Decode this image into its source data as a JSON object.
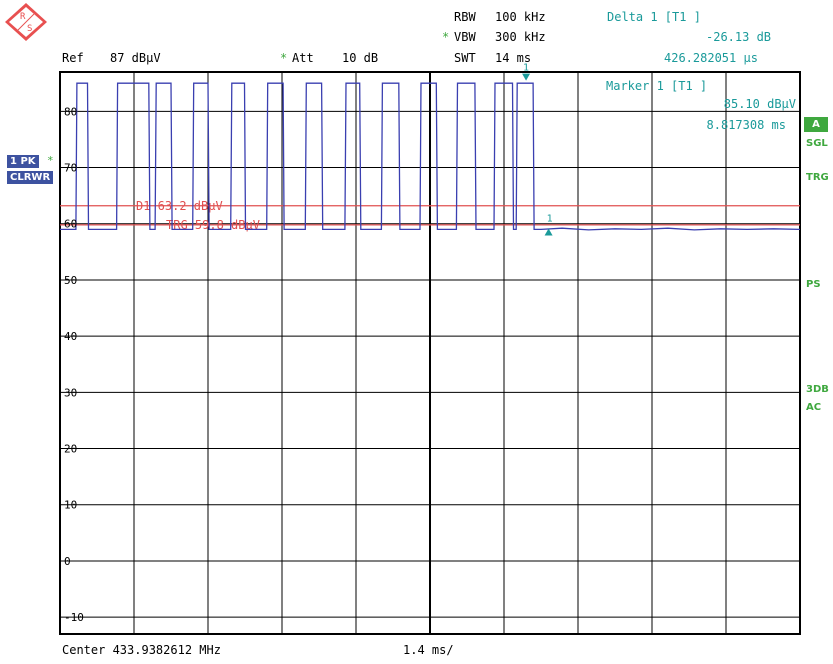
{
  "header": {
    "rbw_label": "RBW",
    "rbw_value": "100 kHz",
    "vbw_star": "*",
    "vbw_label": "VBW",
    "vbw_value": "300 kHz",
    "swt_label": "SWT",
    "swt_value": "14 ms",
    "ref_label": "Ref",
    "ref_value": "87 dBµV",
    "att_star": "*",
    "att_label": "Att",
    "att_value": "10 dB"
  },
  "delta_marker": {
    "title": "Delta 1 [T1 ]",
    "level": "-26.13 dB",
    "time": "426.282051 µs"
  },
  "marker": {
    "title": "Marker 1 [T1 ]",
    "level": "85.10 dBµV",
    "time": "8.817308 ms"
  },
  "left_badges": {
    "trace_label": "1 PK",
    "trace_star": "*",
    "mode_label": "CLRWR"
  },
  "right_labels": {
    "a_badge": "A",
    "sgl": "SGL",
    "trg": "TRG",
    "ps": "PS",
    "db3": "3DB",
    "ac": "AC"
  },
  "footer": {
    "center": "Center 433.9382612 MHz",
    "span": "1.4 ms/"
  },
  "colors": {
    "trace": "#3a3fb0",
    "limit_line": "#e05050",
    "marker": "#1a9a9a",
    "grid": "#000000"
  },
  "chart_data": {
    "type": "line",
    "x_unit": "ms",
    "y_unit": "dBµV",
    "xlim": [
      0,
      14
    ],
    "ylim": [
      -13,
      87
    ],
    "y_ticks": [
      80,
      70,
      60,
      50,
      40,
      30,
      20,
      10,
      0,
      -10
    ],
    "y_tick_labels": [
      "80",
      "70",
      "60",
      "50",
      "40",
      "30",
      "20",
      "10",
      "0",
      "-10"
    ],
    "grid": true,
    "series": [
      {
        "points": [
          [
            0,
            59
          ],
          [
            0.3,
            59
          ],
          [
            0.32,
            85
          ],
          [
            0.52,
            85
          ],
          [
            0.54,
            59
          ],
          [
            1.07,
            59
          ],
          [
            1.09,
            85
          ],
          [
            1.68,
            85
          ],
          [
            1.7,
            59
          ],
          [
            1.8,
            59
          ],
          [
            1.82,
            85
          ],
          [
            2.1,
            85
          ],
          [
            2.12,
            59
          ],
          [
            2.51,
            59
          ],
          [
            2.53,
            85
          ],
          [
            2.8,
            85
          ],
          [
            2.82,
            59
          ],
          [
            3.23,
            59
          ],
          [
            3.25,
            85
          ],
          [
            3.49,
            85
          ],
          [
            3.51,
            59
          ],
          [
            3.91,
            59
          ],
          [
            3.93,
            85
          ],
          [
            4.22,
            85
          ],
          [
            4.24,
            59
          ],
          [
            4.64,
            59
          ],
          [
            4.66,
            85
          ],
          [
            4.95,
            85
          ],
          [
            4.97,
            59
          ],
          [
            5.39,
            59
          ],
          [
            5.41,
            85
          ],
          [
            5.67,
            85
          ],
          [
            5.69,
            59
          ],
          [
            6.08,
            59
          ],
          [
            6.1,
            85
          ],
          [
            6.41,
            85
          ],
          [
            6.43,
            59
          ],
          [
            6.81,
            59
          ],
          [
            6.83,
            85
          ],
          [
            7.12,
            85
          ],
          [
            7.14,
            59
          ],
          [
            7.5,
            59
          ],
          [
            7.52,
            85
          ],
          [
            7.85,
            85
          ],
          [
            7.87,
            59
          ],
          [
            8.21,
            59
          ],
          [
            8.23,
            85
          ],
          [
            8.56,
            85
          ],
          [
            8.58,
            59
          ],
          [
            8.63,
            59
          ],
          [
            8.65,
            85
          ],
          [
            8.95,
            85
          ],
          [
            8.97,
            59
          ],
          [
            9.1,
            59
          ],
          [
            9.5,
            59.2
          ],
          [
            10,
            58.9
          ],
          [
            10.5,
            59.1
          ],
          [
            11,
            59
          ],
          [
            11.5,
            59.2
          ],
          [
            12,
            58.9
          ],
          [
            12.5,
            59.1
          ],
          [
            13,
            59
          ],
          [
            13.5,
            59.1
          ],
          [
            14,
            59
          ]
        ]
      }
    ],
    "limit_lines": [
      {
        "label": "D1 63.2 dBµV",
        "value": 63.2
      },
      {
        "label": "TRG 59.8 dBµV",
        "value": 59.8
      }
    ],
    "markers": [
      {
        "label": "1",
        "x": 8.817308,
        "y": 85.1,
        "kind": "marker"
      },
      {
        "label": "1",
        "x": 9.24359,
        "y": 58.97,
        "kind": "delta"
      }
    ]
  }
}
